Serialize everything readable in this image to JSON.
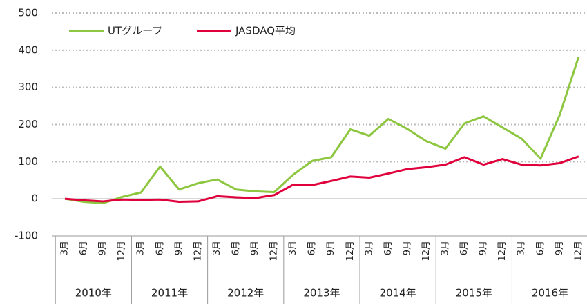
{
  "chart_data": {
    "type": "line",
    "categories": [
      "3月",
      "6月",
      "9月",
      "12月",
      "3月",
      "6月",
      "9月",
      "12月",
      "3月",
      "6月",
      "9月",
      "12月",
      "3月",
      "6月",
      "9月",
      "12月",
      "3月",
      "6月",
      "9月",
      "12月",
      "3月",
      "6月",
      "9月",
      "12月",
      "3月",
      "6月",
      "9月",
      "12月"
    ],
    "groups": [
      "2010年",
      "2011年",
      "2012年",
      "2013年",
      "2014年",
      "2015年",
      "2016年"
    ],
    "series": [
      {
        "name": "UTグループ",
        "color": "#8dc63f",
        "values": [
          0,
          -8,
          -12,
          5,
          17,
          87,
          25,
          42,
          52,
          25,
          20,
          18,
          65,
          102,
          112,
          187,
          170,
          215,
          188,
          155,
          135,
          203,
          222,
          192,
          162,
          108,
          225,
          382
        ]
      },
      {
        "name": "JASDAQ平均",
        "color": "#e0003c",
        "values": [
          0,
          -4,
          -7,
          -2,
          -3,
          -2,
          -8,
          -7,
          7,
          4,
          2,
          10,
          38,
          37,
          48,
          60,
          57,
          68,
          80,
          85,
          92,
          112,
          92,
          107,
          92,
          90,
          96,
          114
        ]
      }
    ],
    "ylim": [
      -100,
      500
    ],
    "yticks": [
      -100,
      0,
      100,
      200,
      300,
      400,
      500
    ],
    "grid": true,
    "legend": "top-left"
  }
}
